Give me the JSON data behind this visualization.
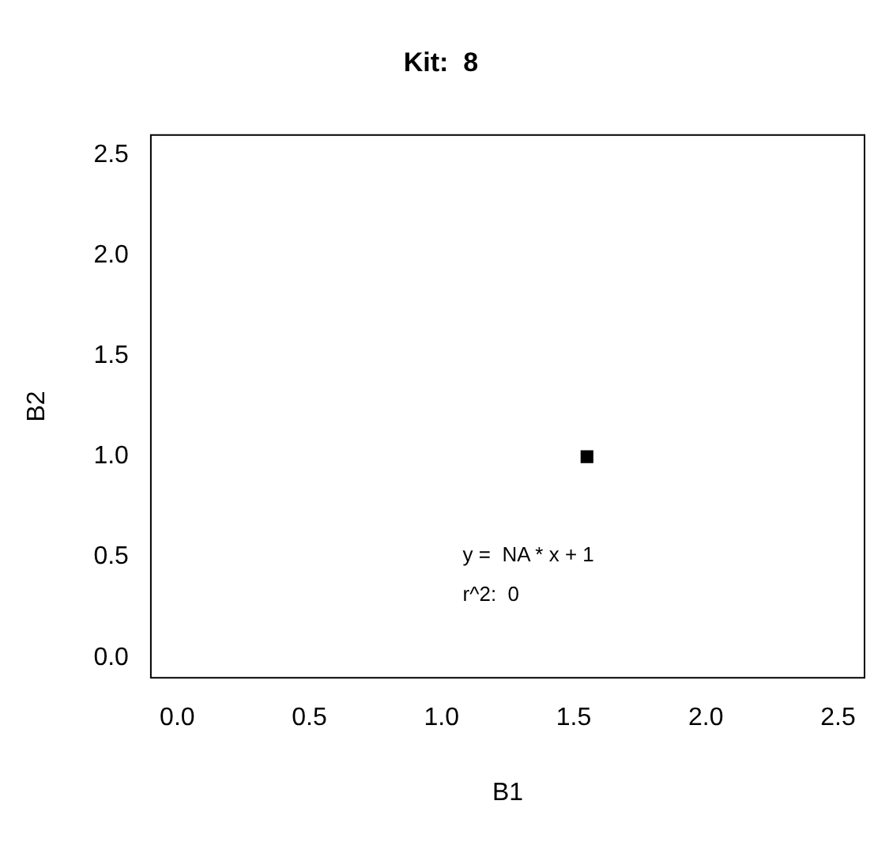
{
  "chart_data": {
    "type": "scatter",
    "title": "Kit:  8",
    "xlabel": "B1",
    "ylabel": "B2",
    "x": [
      1.55
    ],
    "values": [
      1
    ],
    "color": "#000000",
    "marker": "square",
    "xlim": [
      -0.1,
      2.6
    ],
    "ylim": [
      -0.1,
      2.6
    ],
    "xticks": [
      {
        "value": 0,
        "label": "0.0"
      },
      {
        "value": 0.5,
        "label": "0.5"
      },
      {
        "value": 1,
        "label": "1.0"
      },
      {
        "value": 1.5,
        "label": "1.5"
      },
      {
        "value": 2,
        "label": "2.0"
      },
      {
        "value": 2.5,
        "label": "2.5"
      }
    ],
    "yticks": [
      {
        "value": 0,
        "label": "0.0"
      },
      {
        "value": 0.5,
        "label": "0.5"
      },
      {
        "value": 1,
        "label": "1.0"
      },
      {
        "value": 1.5,
        "label": "1.5"
      },
      {
        "value": 2,
        "label": "2.0"
      },
      {
        "value": 2.5,
        "label": "2.5"
      }
    ],
    "grid": false,
    "legend": false,
    "annotations": [
      "y =  NA * x + 1",
      "r^2:  0"
    ]
  }
}
